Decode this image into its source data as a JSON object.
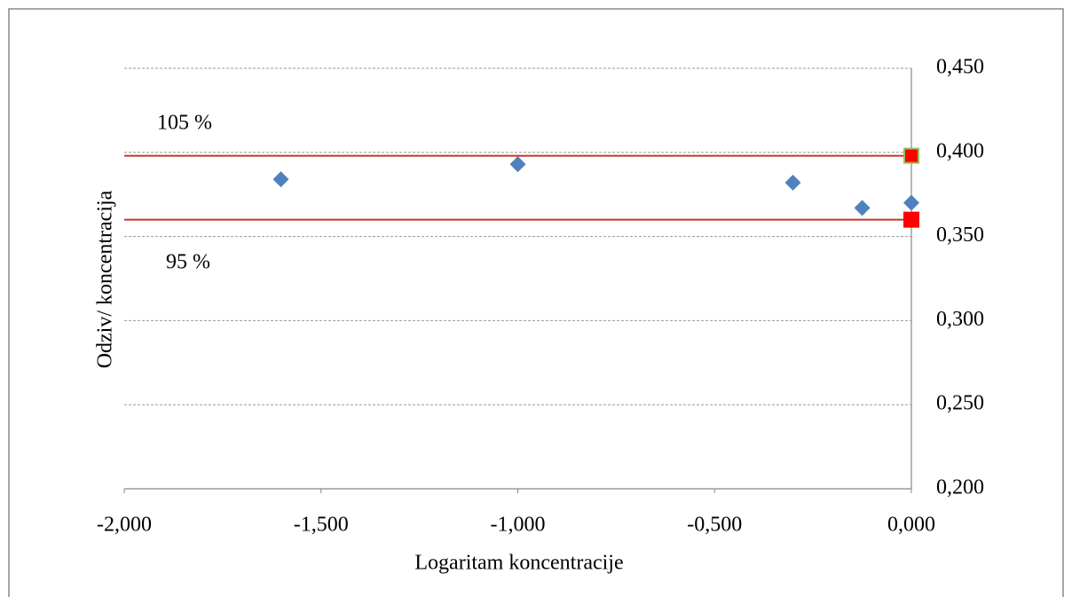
{
  "chart_data": {
    "type": "scatter",
    "x_label": "Logaritam koncentracije",
    "y_label": "Odziv/ koncentracija",
    "annotations": [
      "105  %",
      "95 %"
    ],
    "xlim": [
      -2,
      0
    ],
    "ylim": [
      0.2,
      0.45
    ],
    "xticks": [
      {
        "value": -2,
        "label": "-2,000"
      },
      {
        "value": -1.5,
        "label": "-1,500"
      },
      {
        "value": -1,
        "label": "-1,000"
      },
      {
        "value": -0.5,
        "label": "-0,500"
      },
      {
        "value": 0,
        "label": "0,000"
      }
    ],
    "yticks": [
      {
        "value": 0.2,
        "label": "0,200"
      },
      {
        "value": 0.25,
        "label": "0,250"
      },
      {
        "value": 0.3,
        "label": "0,300"
      },
      {
        "value": 0.35,
        "label": "0,350"
      },
      {
        "value": 0.4,
        "label": "0,400"
      },
      {
        "value": 0.45,
        "label": "0,450"
      }
    ],
    "y_axis_side": "right",
    "grid": true,
    "series": [
      {
        "mode": "markers",
        "marker": "diamond",
        "color": "#4f81bd",
        "x": [
          -1.602,
          -1.0,
          -0.301,
          -0.125,
          0
        ],
        "values": [
          0.384,
          0.393,
          0.382,
          0.367,
          0.37
        ]
      },
      {
        "mode": "line",
        "color": "#c0392b",
        "x": [
          -2,
          0
        ],
        "values": [
          0.398,
          0.398
        ]
      },
      {
        "mode": "line",
        "color": "#c0392b",
        "x": [
          -2,
          0
        ],
        "values": [
          0.36,
          0.36
        ]
      },
      {
        "mode": "markers",
        "marker": "square",
        "color": "#ff0000",
        "edgecolors": [
          "#9bbb59",
          "#ff0000"
        ],
        "x": [
          0,
          0
        ],
        "values": [
          0.398,
          0.36
        ]
      }
    ]
  }
}
